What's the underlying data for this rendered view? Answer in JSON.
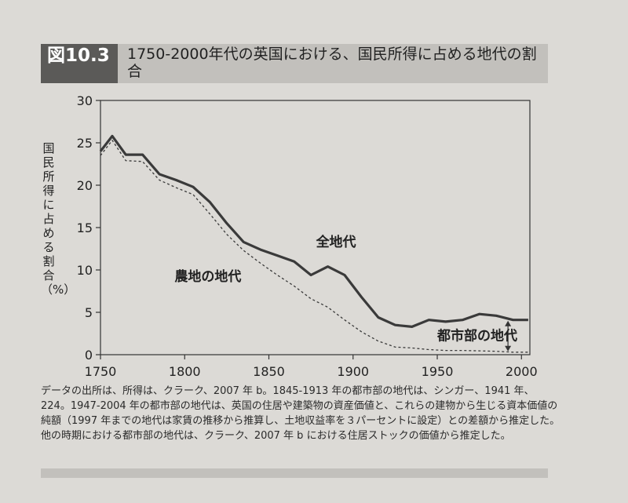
{
  "figure": {
    "number": "図10.3",
    "title": "1750-2000年代の英国における、国民所得に占める地代の割合"
  },
  "caption": "データの出所は、所得は、クラーク、2007 年 b。1845-1913 年の都市部の地代は、シンガー、1941 年、224。1947-2004 年の都市部の地代は、英国の住居や建築物の資産価値と、これらの建物から生じる資本価値の純額（1997 年までの地代は家賃の推移から推算し、土地収益率を３パーセントに設定）との差額から推定した。他の時期における都市部の地代は、クラーク、2007 年 b における住居ストックの価値から推定した。",
  "chart_data": {
    "type": "line",
    "ylabel": "国民所得に占める割合（%）",
    "xlabel": "",
    "xlim": [
      1750,
      2005
    ],
    "ylim": [
      0,
      30
    ],
    "x_ticks": [
      "1750",
      "1800",
      "1850",
      "1900",
      "1950",
      "2000"
    ],
    "y_ticks": [
      "0",
      "5",
      "10",
      "15",
      "20",
      "25",
      "30"
    ],
    "grid": false,
    "series": [
      {
        "name": "全地代",
        "style": "solid",
        "color": "#3a3a3a",
        "x": [
          1750,
          1757,
          1765,
          1775,
          1785,
          1795,
          1805,
          1815,
          1825,
          1835,
          1845,
          1855,
          1865,
          1875,
          1885,
          1895,
          1905,
          1915,
          1925,
          1935,
          1945,
          1955,
          1965,
          1975,
          1985,
          1995,
          2004
        ],
        "y": [
          24,
          25.8,
          23.6,
          23.6,
          21.3,
          20.6,
          19.8,
          18.0,
          15.5,
          13.3,
          12.4,
          11.7,
          11.0,
          9.4,
          10.4,
          9.4,
          6.8,
          4.4,
          3.5,
          3.3,
          4.1,
          3.9,
          4.1,
          4.8,
          4.6,
          4.1,
          4.1
        ]
      },
      {
        "name": "農地の地代",
        "style": "dashed",
        "color": "#3a3a3a",
        "x": [
          1750,
          1757,
          1765,
          1775,
          1785,
          1795,
          1805,
          1815,
          1825,
          1835,
          1845,
          1855,
          1865,
          1875,
          1885,
          1895,
          1905,
          1915,
          1925,
          1935,
          1945,
          1955,
          1965,
          1975,
          1985,
          1995,
          2004
        ],
        "y": [
          23.5,
          25.3,
          22.9,
          22.8,
          20.6,
          19.7,
          18.9,
          16.6,
          14.2,
          12.3,
          10.8,
          9.4,
          8.1,
          6.6,
          5.6,
          4.1,
          2.7,
          1.6,
          0.9,
          0.8,
          0.6,
          0.5,
          0.5,
          0.45,
          0.4,
          0.3,
          0.3
        ]
      }
    ],
    "annotations": [
      {
        "text": "全地代",
        "x": 1878,
        "y": 12.8
      },
      {
        "text": "農地の地代",
        "x": 1794,
        "y": 8.7
      },
      {
        "text": "都市部の地代",
        "x": 1950,
        "y": 1.7
      }
    ]
  }
}
